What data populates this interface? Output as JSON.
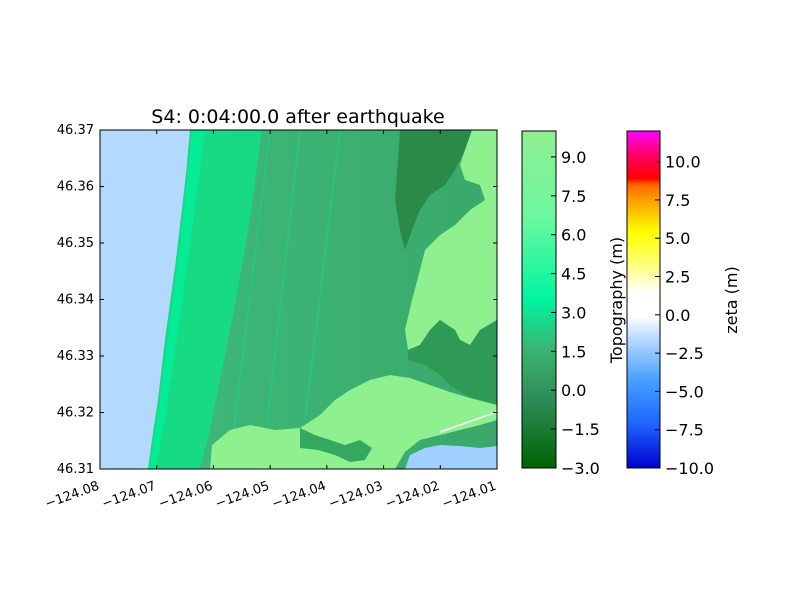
{
  "chart_data": {
    "type": "heatmap",
    "title": "S4: 0:04:00.0 after earthquake",
    "xlim": [
      -124.08,
      -124.01
    ],
    "ylim": [
      46.31,
      46.37
    ],
    "x_ticks": [
      -124.08,
      -124.07,
      -124.06,
      -124.05,
      -124.04,
      -124.03,
      -124.02,
      -124.01
    ],
    "x_tick_labels": [
      "−124.08",
      "−124.07",
      "−124.06",
      "−124.05",
      "−124.04",
      "−124.03",
      "−124.02",
      "−124.01"
    ],
    "y_ticks": [
      46.31,
      46.32,
      46.33,
      46.34,
      46.35,
      46.36,
      46.37
    ],
    "y_tick_labels": [
      "46.31",
      "46.32",
      "46.33",
      "46.34",
      "46.35",
      "46.36",
      "46.37"
    ],
    "grid": false,
    "colorbars": [
      {
        "label": "Topography (m)",
        "range": [
          -3.0,
          10.0
        ],
        "ticks": [
          -3.0,
          -1.5,
          0.0,
          1.5,
          3.0,
          4.5,
          6.0,
          7.5,
          9.0
        ],
        "tick_labels": [
          "−3.0",
          "−1.5",
          "0.0",
          "1.5",
          "3.0",
          "4.5",
          "6.0",
          "7.5",
          "9.0"
        ],
        "colors": [
          "#006400",
          "#2e8b57",
          "#3cb371",
          "#00fa9a",
          "#7cfc9a",
          "#90ee90"
        ]
      },
      {
        "label": "zeta (m)",
        "range": [
          -10.0,
          12.0
        ],
        "ticks": [
          -10.0,
          -7.5,
          -5.0,
          -2.5,
          0.0,
          2.5,
          5.0,
          7.5,
          10.0
        ],
        "tick_labels": [
          "−10.0",
          "−7.5",
          "−5.0",
          "−2.5",
          "0.0",
          "2.5",
          "5.0",
          "7.5",
          "10.0"
        ],
        "colors": [
          "#0000cc",
          "#1e90ff",
          "#87cefa",
          "#ffffff",
          "#ffff00",
          "#ff8c00",
          "#ff0000",
          "#ff00ff"
        ]
      }
    ],
    "regions": [
      {
        "name": "ocean",
        "color": "#b3d9ff"
      },
      {
        "name": "lowland",
        "color": "#3cb371"
      },
      {
        "name": "beach-dunes",
        "color": "#00e68a"
      },
      {
        "name": "highland",
        "color": "#8ef08e"
      },
      {
        "name": "forest",
        "color": "#1f7a3a"
      },
      {
        "name": "bay-water",
        "color": "#9fd0ff"
      }
    ]
  }
}
